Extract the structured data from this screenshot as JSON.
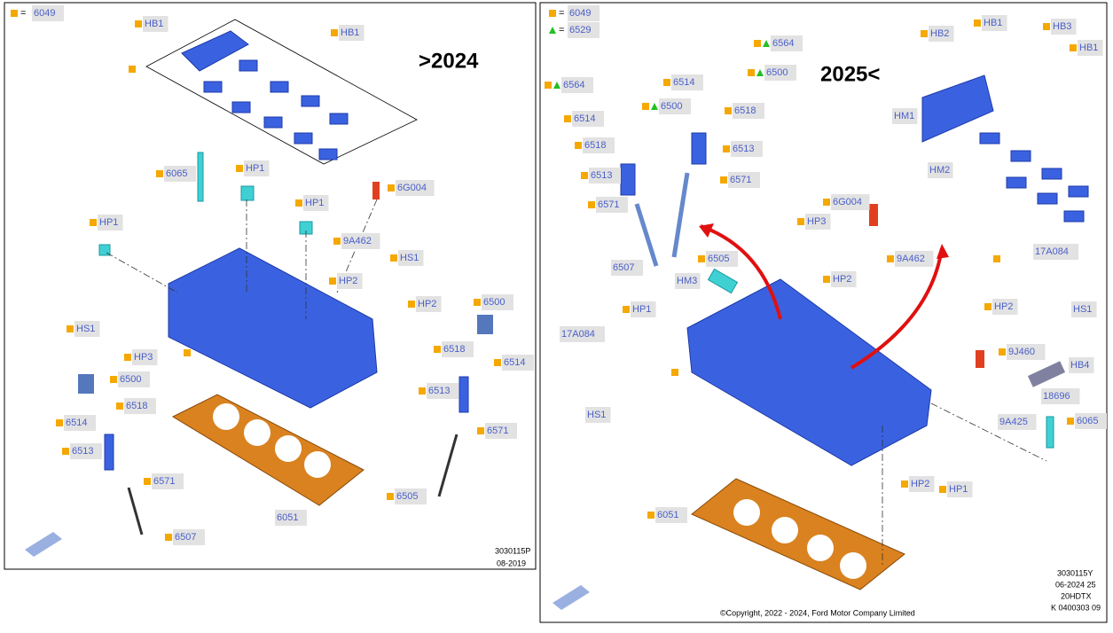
{
  "left": {
    "legend": {
      "symbol": "=",
      "code": "6049"
    },
    "title": ">2024",
    "callouts": [
      "HB1",
      "HB1",
      "6065",
      "HP1",
      "HP1",
      "6G004",
      "HP1",
      "9A462",
      "HS1",
      "HP2",
      "HP2",
      "6500",
      "HS1",
      "HP3",
      "6518",
      "6514",
      "6500",
      "6513",
      "6518",
      "6514",
      "6571",
      "6513",
      "6571",
      "6505",
      "6051",
      "6507"
    ],
    "footer": [
      "3030115P",
      "08-2019"
    ]
  },
  "right": {
    "legend": [
      {
        "symbol": "=",
        "code": "6049"
      },
      {
        "symbol": "=",
        "code": "6529"
      }
    ],
    "title": "2025<",
    "callouts": [
      "HB2",
      "HB1",
      "HB3",
      "HB1",
      "6564",
      "6500",
      "6564",
      "6514",
      "6500",
      "6518",
      "6514",
      "6518",
      "6513",
      "HM1",
      "6513",
      "6571",
      "HM2",
      "6571",
      "6G004",
      "HP3",
      "9A462",
      "17A084",
      "6507",
      "6505",
      "HM3",
      "HP2",
      "HP1",
      "HP2",
      "HS1",
      "17A084",
      "9J460",
      "HB4",
      "18696",
      "HS1",
      "9A425",
      "6065",
      "HP2",
      "HP1",
      "6051"
    ],
    "footer": [
      "3030115Y",
      "06-2024 25",
      "20HDTX",
      "K 0400303 09"
    ],
    "copyright": "©Copyright, 2022 - 2024, Ford Motor Company Limited"
  }
}
